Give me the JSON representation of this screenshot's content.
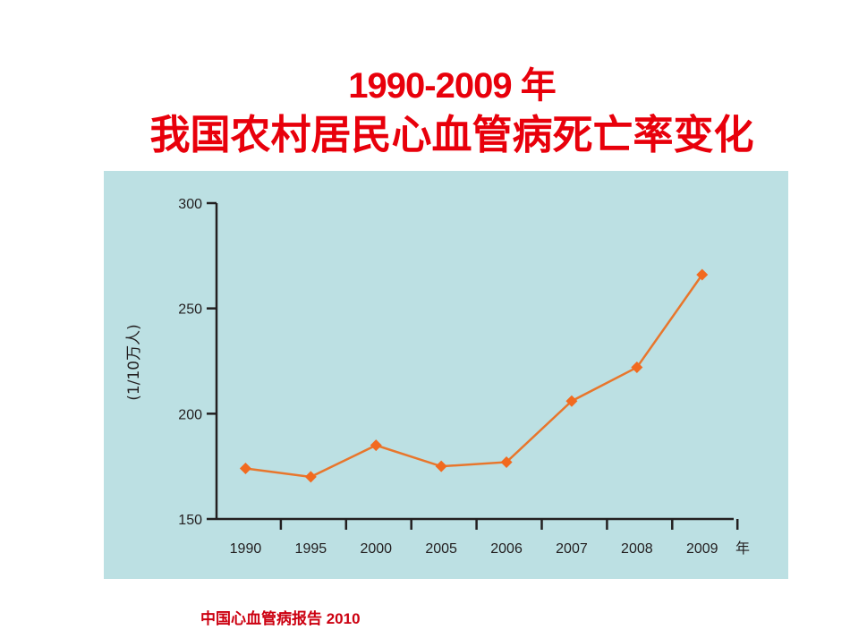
{
  "slide": {
    "title_line1": "1990-2009 年",
    "title_line2": "我国农村居民心血管病死亡率变化",
    "source": "中国心血管病报告 2010"
  },
  "colors": {
    "title": "#e8000b",
    "panel_bg": "#bce0e3",
    "series": "#e8762c",
    "marker": "#f26a1f",
    "axis": "#231f20"
  },
  "chart_data": {
    "type": "line",
    "title": "1990-2009 年 我国农村居民心血管病死亡率变化",
    "xlabel": "年",
    "ylabel": "(1/10万人)",
    "categories": [
      "1990",
      "1995",
      "2000",
      "2005",
      "2006",
      "2007",
      "2008",
      "2009"
    ],
    "series": [
      {
        "name": "农村居民心血管病死亡率",
        "values": [
          174,
          170,
          185,
          175,
          177,
          206,
          222,
          266
        ],
        "marker": "diamond"
      }
    ],
    "ylim": [
      150,
      300
    ],
    "yticks": [
      150,
      200,
      250,
      300
    ],
    "grid": false,
    "legend": "none"
  }
}
